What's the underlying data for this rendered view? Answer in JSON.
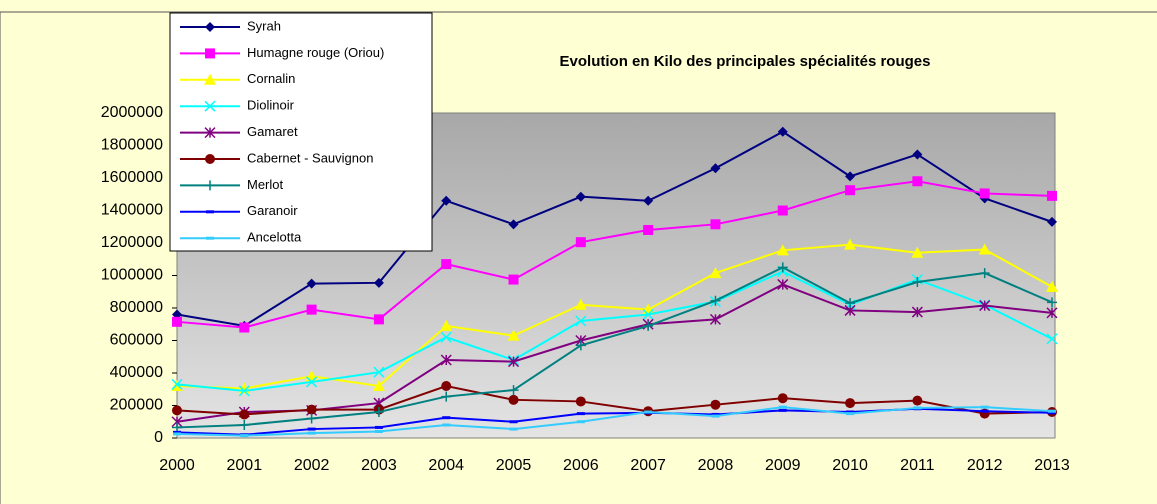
{
  "chart_data": {
    "type": "line",
    "title": "Evolution en Kilo des principales spécialités rouges",
    "x": [
      "2000",
      "2001",
      "2002",
      "2003",
      "2004",
      "2005",
      "2006",
      "2007",
      "2008",
      "2009",
      "2010",
      "2011",
      "2012",
      "2013"
    ],
    "ylim": [
      0,
      2000000
    ],
    "yticks": [
      0,
      200000,
      400000,
      600000,
      800000,
      1000000,
      1200000,
      1400000,
      1600000,
      1800000,
      2000000
    ],
    "series": [
      {
        "name": "Syrah",
        "color": "#000080",
        "marker": "diamond",
        "values": [
          760000,
          690000,
          950000,
          955000,
          1460000,
          1315000,
          1485000,
          1460000,
          1660000,
          1885000,
          1610000,
          1745000,
          1475000,
          1330000
        ]
      },
      {
        "name": "Humagne rouge (Oriou)",
        "color": "#ff00ff",
        "marker": "square",
        "values": [
          715000,
          680000,
          790000,
          730000,
          1070000,
          975000,
          1205000,
          1280000,
          1315000,
          1400000,
          1525000,
          1580000,
          1505000,
          1490000
        ]
      },
      {
        "name": "Cornalin",
        "color": "#ffff00",
        "marker": "triangle",
        "values": [
          320000,
          305000,
          380000,
          320000,
          690000,
          630000,
          820000,
          790000,
          1015000,
          1155000,
          1190000,
          1140000,
          1160000,
          930000
        ]
      },
      {
        "name": "Diolinoir",
        "color": "#00ffff",
        "marker": "x",
        "values": [
          330000,
          290000,
          345000,
          405000,
          620000,
          480000,
          720000,
          760000,
          840000,
          1025000,
          820000,
          975000,
          820000,
          610000
        ]
      },
      {
        "name": "Gamaret",
        "color": "#800080",
        "marker": "star",
        "values": [
          100000,
          160000,
          170000,
          215000,
          480000,
          470000,
          600000,
          700000,
          730000,
          945000,
          785000,
          775000,
          815000,
          770000
        ]
      },
      {
        "name": "Cabernet - Sauvignon",
        "color": "#800000",
        "marker": "circle",
        "values": [
          170000,
          145000,
          175000,
          175000,
          320000,
          235000,
          225000,
          165000,
          205000,
          245000,
          215000,
          230000,
          150000,
          160000
        ]
      },
      {
        "name": "Merlot",
        "color": "#008080",
        "marker": "plus",
        "values": [
          65000,
          80000,
          120000,
          160000,
          255000,
          295000,
          570000,
          690000,
          845000,
          1050000,
          830000,
          960000,
          1015000,
          835000
        ]
      },
      {
        "name": "Garanoir",
        "color": "#0000ff",
        "marker": "dash",
        "values": [
          35000,
          20000,
          55000,
          65000,
          125000,
          100000,
          150000,
          155000,
          145000,
          170000,
          160000,
          180000,
          165000,
          155000
        ]
      },
      {
        "name": "Ancelotta",
        "color": "#33ccff",
        "marker": "dash",
        "values": [
          25000,
          15000,
          30000,
          40000,
          80000,
          55000,
          100000,
          160000,
          135000,
          190000,
          150000,
          185000,
          190000,
          165000
        ]
      }
    ]
  }
}
